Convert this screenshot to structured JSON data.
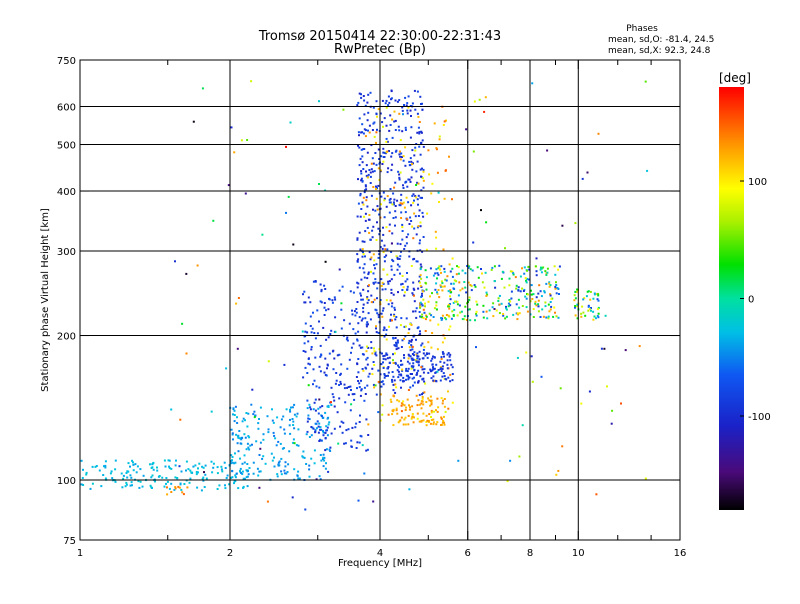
{
  "chart_data": {
    "type": "scatter",
    "title": "Tromsø 20150414 22:30:00-22:31:43",
    "subtitle": "RwPretec (Bp)",
    "xlabel": "Frequency [MHz]",
    "ylabel": "Stationary phase Virtual Height [km]",
    "x_scale": "log",
    "y_scale": "log",
    "xlim": [
      1,
      16
    ],
    "ylim": [
      75,
      750
    ],
    "x_ticks": [
      1,
      2,
      4,
      6,
      8,
      10,
      16
    ],
    "x_tick_labels": [
      "1",
      "2",
      "4",
      "6",
      "8",
      "10",
      "16"
    ],
    "x_minor_ticks": [
      1.5,
      3,
      5,
      7,
      9,
      12,
      14
    ],
    "x_grid": [
      2,
      4,
      6,
      8,
      10
    ],
    "y_ticks": [
      75,
      100,
      200,
      300,
      400,
      500,
      600,
      750
    ],
    "y_tick_labels": [
      "75",
      "100",
      "200",
      "300",
      "400",
      "500",
      "600",
      "750"
    ],
    "y_grid": [
      100,
      200,
      300,
      400,
      500,
      600
    ],
    "grid": true,
    "stats": {
      "heading": "Phases",
      "line1": "mean, sd,O: -81.4, 24.5",
      "line2": "mean, sd,X:  92.3, 24.8"
    },
    "colorbar": {
      "label": "[deg]",
      "range": [
        -180,
        180
      ],
      "ticks": [
        100,
        0,
        -100
      ],
      "tick_labels": [
        "100",
        "0",
        "-100"
      ]
    },
    "point_clusters": [
      {
        "name": "low-band cyan trace",
        "x": [
          1.0,
          2.2
        ],
        "y": [
          95,
          110
        ],
        "phase": [
          -40,
          -20
        ],
        "count": 180
      },
      {
        "name": "low-band orange spots",
        "x": [
          1.45,
          1.65
        ],
        "y": [
          93,
          97
        ],
        "phase": [
          120,
          150
        ],
        "count": 10
      },
      {
        "name": "F-layer rise cyan",
        "x": [
          2.0,
          3.2
        ],
        "y": [
          100,
          145
        ],
        "phase": [
          -55,
          -25
        ],
        "count": 220
      },
      {
        "name": "F-layer rise blue",
        "x": [
          2.8,
          3.8
        ],
        "y": [
          115,
          260
        ],
        "phase": [
          -105,
          -70
        ],
        "count": 230
      },
      {
        "name": "O-trace core",
        "x": [
          3.6,
          4.9
        ],
        "y": [
          150,
          650
        ],
        "phase": [
          -110,
          -70
        ],
        "count": 600
      },
      {
        "name": "X-trace warm",
        "x": [
          3.7,
          5.6
        ],
        "y": [
          130,
          600
        ],
        "phase": [
          80,
          150
        ],
        "count": 220
      },
      {
        "name": "lower loop blue",
        "x": [
          4.0,
          5.6
        ],
        "y": [
          160,
          185
        ],
        "phase": [
          -100,
          -80
        ],
        "count": 140
      },
      {
        "name": "lower loop orange",
        "x": [
          4.2,
          5.4
        ],
        "y": [
          130,
          150
        ],
        "phase": [
          110,
          140
        ],
        "count": 90
      },
      {
        "name": "spread F band",
        "x": [
          4.8,
          9.2
        ],
        "y": [
          215,
          280
        ],
        "phase": [
          -100,
          140
        ],
        "count": 320
      },
      {
        "name": "high-frequency echoes",
        "x": [
          9.8,
          11.0
        ],
        "y": [
          215,
          250
        ],
        "phase": [
          -90,
          130
        ],
        "count": 50
      },
      {
        "name": "scattered points",
        "x": [
          1.5,
          14.0
        ],
        "y": [
          85,
          700
        ],
        "phase": [
          -180,
          180
        ],
        "count": 130
      }
    ]
  }
}
